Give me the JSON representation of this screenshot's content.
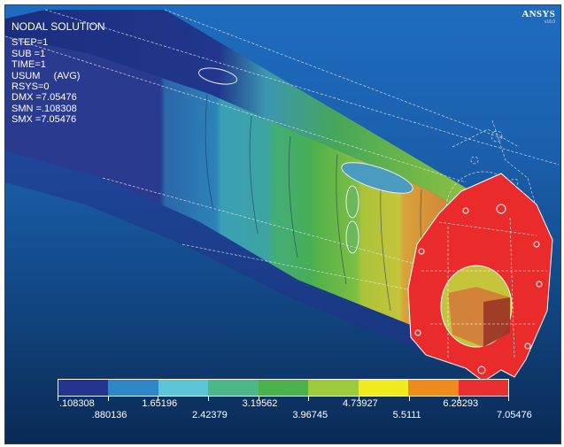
{
  "window": {
    "logo": "ANSYS",
    "version": "v18.0"
  },
  "info": {
    "title": "NODAL SOLUTION",
    "lines": [
      "STEP=1",
      "SUB =1",
      "TIME=1",
      "USUM     (AVG)",
      "RSYS=0",
      "DMX =7.05476",
      "SMN =.108308",
      "SMX =7.05476"
    ]
  },
  "legend": {
    "colors": [
      "#24348f",
      "#2f86c8",
      "#5cc5d8",
      "#4cb88a",
      "#49b24a",
      "#9ecb3c",
      "#f0ea1e",
      "#f08a1c",
      "#e83030"
    ],
    "labels": [
      ".108308",
      ".880136",
      "1.65196",
      "2.42379",
      "3.19562",
      "3.96745",
      "4.73927",
      "5.5111",
      "6.28293",
      "7.05476"
    ]
  },
  "model": {
    "body_color": "#2b3d8c",
    "flange_color": "#ea2b2b"
  }
}
